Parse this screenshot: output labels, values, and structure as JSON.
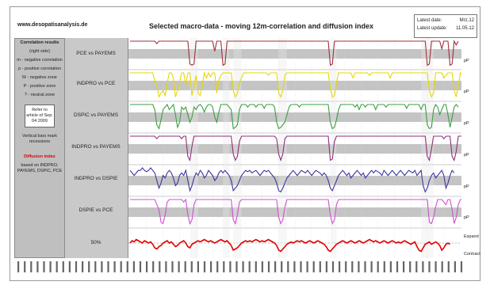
{
  "header": {
    "website": "www.desopatisanalysis.de",
    "title": "Selected macro-data - moving 12m-correlation and diffusion index"
  },
  "datebox": {
    "latest_date_label": "Latest date:",
    "latest_date_value": "Mrz.12",
    "latest_update_label": "Latest update:",
    "latest_update_value": "11.05.12"
  },
  "legend": {
    "title": "Correlation results",
    "lines": [
      "(right side)",
      "m - negative correlation",
      "p - positive correlation",
      "M - negative zone",
      "P - positive zone",
      "? - neutral zone"
    ],
    "refer": "Refer to article of Sep. 04 2009",
    "bars_note": "Vertical bars mark recessions",
    "diffusion_title": "Diffusion index",
    "diffusion_note": "based on INDPRO, PAYEMS, DSPIC, PCE"
  },
  "colors": {
    "pce_payems": "#a0303a",
    "indpro_pce": "#e6d800",
    "dspic_payems": "#3aa040",
    "indpro_payems": "#8e2f7a",
    "indpro_dspic": "#3a35a0",
    "dspic_pce": "#d050d0",
    "diffusion": "#e00000",
    "band": "#c4c4c4"
  },
  "chart_data": {
    "type": "line",
    "series": [
      {
        "name": "PCE vs PAYEMS",
        "status": "pP",
        "values": [
          1,
          1,
          1,
          1,
          1,
          1,
          1,
          1,
          1,
          1,
          1,
          1,
          1,
          0.9,
          1,
          1,
          1,
          1,
          1,
          1,
          1,
          1,
          1,
          1,
          1,
          1,
          1,
          1,
          1,
          0.1,
          0.05,
          0.1,
          1,
          1,
          1,
          1,
          1,
          1,
          1,
          1,
          1,
          0.6,
          1,
          1,
          1,
          0.05,
          0.1,
          1,
          1,
          1,
          1,
          1,
          1,
          1,
          1,
          1,
          1,
          1,
          1,
          1,
          1,
          1,
          1,
          1,
          1,
          1,
          1,
          1,
          1,
          1,
          1,
          1,
          1,
          1,
          1,
          1,
          1,
          1,
          1,
          1,
          1,
          1,
          1,
          1,
          1,
          1,
          1,
          1,
          1,
          1,
          1,
          1,
          1,
          1,
          1,
          1,
          1,
          0.05,
          0.1,
          1,
          1,
          1,
          1,
          1,
          1,
          1,
          1,
          1,
          1,
          1,
          1,
          1,
          1,
          1,
          1,
          1,
          1,
          1,
          1,
          1,
          1,
          1,
          1,
          1,
          1,
          1,
          1,
          1,
          1,
          1,
          1,
          1,
          1,
          1,
          1,
          1,
          1,
          1,
          1,
          1,
          1,
          1,
          1,
          1,
          0.05,
          0.1,
          1,
          1,
          1,
          1,
          1,
          0.7,
          1,
          1,
          1,
          0.05,
          0.1,
          1,
          0.85,
          1
        ]
      },
      {
        "name": "INDPRO vs PCE",
        "status": "pP",
        "values": [
          1,
          1,
          1,
          1,
          1,
          1,
          1,
          1,
          1,
          1,
          1,
          1,
          0.7,
          0.5,
          0.05,
          0.2,
          0.3,
          0.1,
          0.6,
          1,
          1,
          0.8,
          0.05,
          0.3,
          0.6,
          1,
          1,
          0.5,
          1,
          1,
          0.1,
          0.5,
          0.9,
          0.2,
          0.1,
          0.5,
          1,
          0.8,
          1,
          0.85,
          1,
          1,
          0.2,
          0.7,
          0.9,
          1,
          1,
          1,
          1,
          1,
          0.3,
          0.05,
          0.2,
          0.6,
          0.8,
          1,
          1,
          1,
          1,
          1,
          1,
          1,
          1,
          1,
          1,
          1,
          1,
          0.9,
          1,
          1,
          1,
          1,
          0.2,
          0.05,
          0.3,
          0.9,
          1,
          1,
          1,
          1,
          1,
          1,
          1,
          1,
          1,
          1,
          1,
          1,
          1,
          1,
          1,
          1,
          1,
          1,
          1,
          1,
          1,
          0.4,
          0.05,
          0.1,
          0.6,
          1,
          1,
          1,
          1,
          1,
          1,
          1,
          0.8,
          1,
          1,
          1,
          1,
          1,
          1,
          1,
          0.9,
          1,
          1,
          1,
          1,
          1,
          1,
          1,
          1,
          1,
          0.8,
          1,
          1,
          1,
          1,
          1,
          1,
          1,
          1,
          1,
          1,
          1,
          1,
          1,
          1,
          1,
          1,
          1,
          1,
          0.3,
          0.05,
          0.2,
          1,
          1,
          1,
          1,
          0.8,
          0.9,
          1,
          1,
          1,
          0.3,
          0.05,
          0.5,
          1,
          0.9,
          1
        ]
      },
      {
        "name": "DSPIC vs PAYEMS",
        "status": "pP",
        "values": [
          1,
          1,
          1,
          1,
          1,
          1,
          1,
          1,
          1,
          1,
          1,
          1,
          0.8,
          0.2,
          0.05,
          0.4,
          0.8,
          0.9,
          1,
          0.8,
          0.9,
          1,
          0.6,
          0.1,
          0.3,
          0.9,
          0.8,
          0.9,
          0.6,
          0.3,
          0.5,
          0.9,
          0.8,
          0.95,
          1,
          0.9,
          0.7,
          0.9,
          1,
          1,
          0.9,
          0.5,
          0.3,
          0.7,
          1,
          1,
          1,
          1,
          0.9,
          0.8,
          0.05,
          0.1,
          0.2,
          0.8,
          1,
          1,
          1,
          0.9,
          1,
          1,
          1,
          0.9,
          1,
          1,
          1,
          0.85,
          1,
          1,
          1,
          1,
          0.9,
          0.3,
          0.05,
          0.1,
          0.2,
          0.3,
          0.6,
          0.9,
          1,
          1,
          1,
          1,
          0.9,
          1,
          1,
          1,
          1,
          1,
          1,
          1,
          1,
          1,
          1,
          1,
          1,
          1,
          1,
          0.3,
          0.05,
          0.1,
          0.4,
          0.8,
          1,
          1,
          1,
          1,
          1,
          1,
          1,
          0.9,
          1,
          0.8,
          1,
          1,
          0.9,
          1,
          1,
          1,
          1,
          0.8,
          1,
          1,
          1,
          1,
          0.9,
          1,
          1,
          1,
          1,
          1,
          1,
          1,
          1,
          1,
          0.85,
          1,
          1,
          1,
          1,
          1,
          1,
          0.8,
          1,
          1,
          0.2,
          0.05,
          0.1,
          0.8,
          1,
          0.9,
          0.6,
          0.8,
          1,
          1,
          0.6,
          0.1,
          0.5,
          0.9,
          1,
          0.9
        ]
      },
      {
        "name": "INDPRO vs PAYEMS",
        "status": "pP",
        "values": [
          1,
          1,
          1,
          1,
          1,
          1,
          1,
          1,
          1,
          1,
          1,
          1,
          1,
          0.9,
          1,
          1,
          1,
          1,
          1,
          1,
          1,
          1,
          1,
          1,
          1,
          0.9,
          1,
          1,
          0.2,
          0.05,
          0.6,
          1,
          1,
          1,
          1,
          1,
          1,
          1,
          1,
          1,
          1,
          1,
          1,
          1,
          1,
          1,
          1,
          1,
          1,
          1,
          0.3,
          0.05,
          0.2,
          0.8,
          1,
          1,
          1,
          1,
          1,
          1,
          1,
          1,
          1,
          1,
          1,
          1,
          1,
          1,
          1,
          1,
          1,
          0.9,
          0.3,
          0.05,
          0.3,
          0.9,
          1,
          1,
          1,
          1,
          1,
          1,
          1,
          1,
          1,
          1,
          1,
          1,
          1,
          1,
          1,
          1,
          1,
          1,
          1,
          1,
          1,
          0.05,
          0.1,
          0.8,
          1,
          1,
          1,
          1,
          1,
          1,
          1,
          1,
          1,
          1,
          1,
          1,
          1,
          1,
          1,
          1,
          1,
          1,
          1,
          1,
          1,
          1,
          1,
          1,
          1,
          1,
          1,
          1,
          1,
          1,
          1,
          1,
          1,
          1,
          1,
          1,
          1,
          1,
          1,
          1,
          1,
          1,
          1,
          1,
          0.2,
          0.05,
          0.5,
          1,
          1,
          1,
          1,
          1,
          0.9,
          1,
          1,
          1,
          0.2,
          0.05,
          0.4,
          1,
          1,
          1
        ]
      },
      {
        "name": "INDPRO vs DSPIE",
        "status": "pP",
        "values": [
          0.9,
          0.8,
          0.7,
          0.8,
          0.9,
          0.9,
          1,
          0.9,
          0.85,
          0.9,
          1,
          0.9,
          0.8,
          0.5,
          0.2,
          0.4,
          0.7,
          0.6,
          0.8,
          0.9,
          0.8,
          0.6,
          0.3,
          0.4,
          0.7,
          0.8,
          0.7,
          0.9,
          0.5,
          0.1,
          0.3,
          0.6,
          0.8,
          0.7,
          0.9,
          0.8,
          0.6,
          0.7,
          0.9,
          0.8,
          0.7,
          0.5,
          0.6,
          0.8,
          0.9,
          0.8,
          0.9,
          0.8,
          0.7,
          0.5,
          0.1,
          0.2,
          0.3,
          0.5,
          0.7,
          0.8,
          0.9,
          0.85,
          0.9,
          0.8,
          0.85,
          0.9,
          0.8,
          0.7,
          0.8,
          0.9,
          0.85,
          0.9,
          0.8,
          0.7,
          0.6,
          0.4,
          0.1,
          0.05,
          0.2,
          0.4,
          0.6,
          0.7,
          0.8,
          0.9,
          0.8,
          0.7,
          0.8,
          0.9,
          0.85,
          0.8,
          0.9,
          0.8,
          0.7,
          0.8,
          0.9,
          0.85,
          0.8,
          0.7,
          0.8,
          0.7,
          0.5,
          0.2,
          0.1,
          0.3,
          0.5,
          0.7,
          0.8,
          0.9,
          0.8,
          0.7,
          0.8,
          0.6,
          0.7,
          0.8,
          0.9,
          0.8,
          0.7,
          0.8,
          0.6,
          0.7,
          0.8,
          0.9,
          0.8,
          0.9,
          0.85,
          0.8,
          0.7,
          0.9,
          0.8,
          0.7,
          0.8,
          0.9,
          0.8,
          0.7,
          0.8,
          0.9,
          0.8,
          0.7,
          0.8,
          0.9,
          0.85,
          0.8,
          0.9,
          0.7,
          0.8,
          0.9,
          0.3,
          0.05,
          0.2,
          0.5,
          0.7,
          0.8,
          0.6,
          0.7,
          0.8,
          0.9,
          0.7,
          0.2,
          0.4,
          0.7,
          0.9,
          0.8
        ]
      },
      {
        "name": "DSPIE vs PCE",
        "status": "pP",
        "values": [
          1,
          1,
          1,
          1,
          1,
          1,
          1,
          1,
          1,
          1,
          1,
          1,
          1,
          0.8,
          0.6,
          0.1,
          0.05,
          0.4,
          0.9,
          1,
          1,
          1,
          1,
          1,
          1,
          1,
          0.9,
          1,
          0.4,
          0.05,
          0.2,
          0.8,
          1,
          1,
          1,
          1,
          1,
          1,
          1,
          1,
          1,
          1,
          1,
          1,
          1,
          1,
          1,
          1,
          1,
          1,
          0.2,
          0.05,
          0.4,
          0.9,
          1,
          1,
          1,
          1,
          1,
          1,
          1,
          1,
          1,
          1,
          1,
          1,
          1,
          1,
          1,
          1,
          1,
          1,
          0.3,
          0.05,
          0.2,
          0.7,
          1,
          1,
          1,
          1,
          1,
          1,
          1,
          1,
          1,
          1,
          1,
          1,
          1,
          1,
          1,
          1,
          1,
          1,
          1,
          1,
          1,
          0.4,
          0.05,
          0.2,
          0.8,
          1,
          1,
          1,
          1,
          1,
          1,
          1,
          1,
          1,
          1,
          1,
          1,
          1,
          1,
          1,
          1,
          1,
          1,
          1,
          1,
          1,
          1,
          1,
          1,
          1,
          1,
          1,
          1,
          1,
          1,
          1,
          1,
          1,
          1,
          1,
          1,
          1,
          1,
          1,
          1,
          1,
          1,
          1,
          1,
          0.1,
          0.05,
          0.3,
          0.7,
          1,
          1,
          1,
          0.9,
          0.8,
          1,
          1,
          0.6,
          0.05,
          0.3,
          0.8,
          1,
          1
        ]
      },
      {
        "name": "Diffusion index",
        "label": "50%",
        "upper_label": "Expand",
        "lower_label": "Contract",
        "values": [
          0.5,
          0.6,
          0.55,
          0.65,
          0.6,
          0.55,
          0.5,
          0.6,
          0.55,
          0.5,
          0.55,
          0.45,
          0.3,
          0.25,
          0.35,
          0.4,
          0.5,
          0.55,
          0.6,
          0.5,
          0.55,
          0.45,
          0.35,
          0.4,
          0.5,
          0.55,
          0.6,
          0.5,
          0.35,
          0.3,
          0.45,
          0.5,
          0.55,
          0.6,
          0.55,
          0.6,
          0.65,
          0.6,
          0.55,
          0.6,
          0.55,
          0.5,
          0.55,
          0.6,
          0.65,
          0.6,
          0.55,
          0.6,
          0.5,
          0.4,
          0.2,
          0.25,
          0.3,
          0.4,
          0.5,
          0.55,
          0.6,
          0.55,
          0.6,
          0.55,
          0.6,
          0.65,
          0.6,
          0.55,
          0.6,
          0.55,
          0.6,
          0.65,
          0.6,
          0.55,
          0.5,
          0.4,
          0.2,
          0.15,
          0.25,
          0.35,
          0.45,
          0.5,
          0.55,
          0.5,
          0.55,
          0.6,
          0.55,
          0.6,
          0.55,
          0.5,
          0.55,
          0.6,
          0.55,
          0.5,
          0.55,
          0.6,
          0.55,
          0.5,
          0.45,
          0.35,
          0.2,
          0.15,
          0.25,
          0.35,
          0.45,
          0.5,
          0.55,
          0.6,
          0.55,
          0.5,
          0.55,
          0.6,
          0.55,
          0.5,
          0.55,
          0.6,
          0.55,
          0.5,
          0.55,
          0.6,
          0.65,
          0.6,
          0.55,
          0.6,
          0.55,
          0.5,
          0.55,
          0.6,
          0.55,
          0.5,
          0.55,
          0.6,
          0.55,
          0.5,
          0.55,
          0.5,
          0.55,
          0.6,
          0.55,
          0.5,
          0.45,
          0.5,
          0.55,
          0.35,
          0.2,
          0.15,
          0.3,
          0.45,
          0.5,
          0.55,
          0.45,
          0.5,
          0.55,
          0.5,
          0.4,
          0.2,
          0.3,
          0.45,
          0.5,
          0.45
        ]
      }
    ],
    "recessions": [
      [
        29,
        33
      ],
      [
        45,
        48
      ],
      [
        50,
        54
      ],
      [
        72,
        76
      ],
      [
        97,
        100
      ],
      [
        141,
        147
      ]
    ],
    "x_count": 160,
    "grid": true
  }
}
